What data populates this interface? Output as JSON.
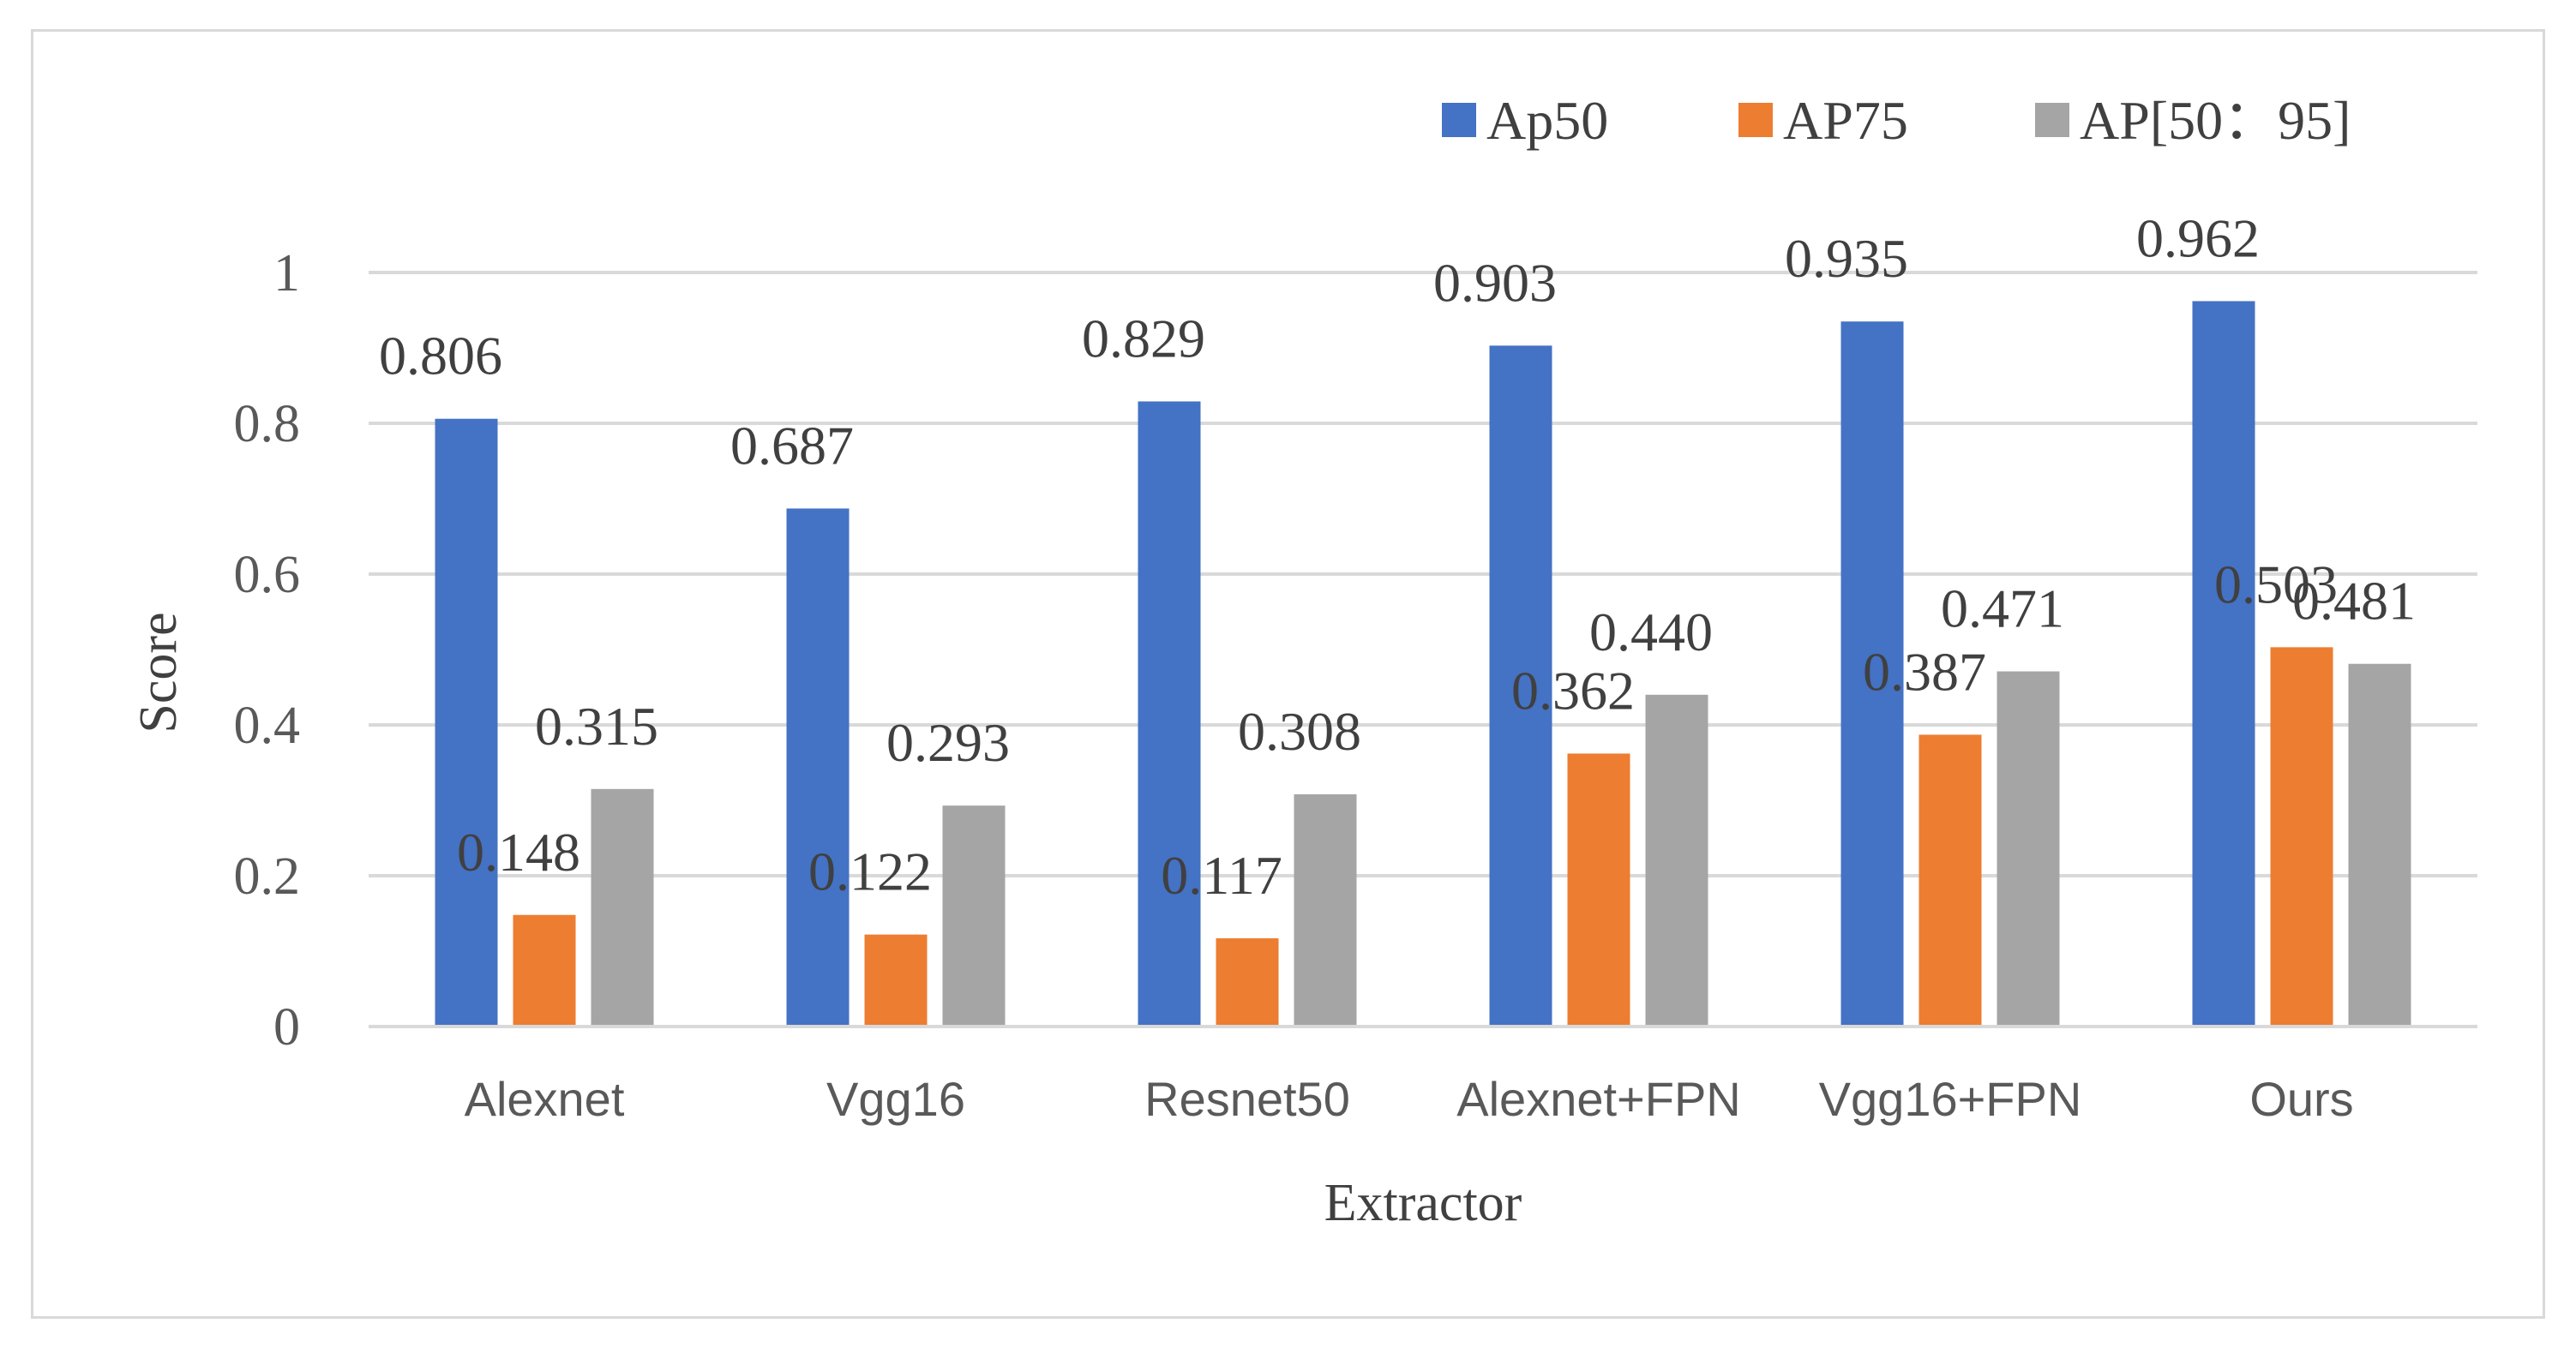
{
  "chart_data": {
    "type": "bar",
    "title": "",
    "xlabel": "Extractor",
    "ylabel": "Score",
    "ylim": [
      0,
      1
    ],
    "yticks": [
      0,
      0.2,
      0.4,
      0.6,
      0.8,
      1
    ],
    "ytick_labels": [
      "0",
      "0.2",
      "0.4",
      "0.6",
      "0.8",
      "1"
    ],
    "grid": true,
    "legend_position": "top-right",
    "categories": [
      "Alexnet",
      "Vgg16",
      "Resnet50",
      "Alexnet+FPN",
      "Vgg16+FPN",
      "Ours"
    ],
    "series": [
      {
        "name": "Ap50",
        "color": "#4472c4",
        "values": [
          0.806,
          0.687,
          0.829,
          0.903,
          0.935,
          0.962
        ],
        "labels": [
          "0.806",
          "0.687",
          "0.829",
          "0.903",
          "0.935",
          "0.962"
        ]
      },
      {
        "name": "AP75",
        "color": "#ed7d31",
        "values": [
          0.148,
          0.122,
          0.117,
          0.362,
          0.387,
          0.503
        ],
        "labels": [
          "0.148",
          "0.122",
          "0.117",
          "0.362",
          "0.387",
          "0.503"
        ]
      },
      {
        "name": "AP[50：95]",
        "color": "#a5a5a5",
        "values": [
          0.315,
          0.293,
          0.308,
          0.44,
          0.471,
          0.481
        ],
        "labels": [
          "0.315",
          "0.293",
          "0.308",
          "0.440",
          "0.471",
          "0.481"
        ]
      }
    ]
  }
}
